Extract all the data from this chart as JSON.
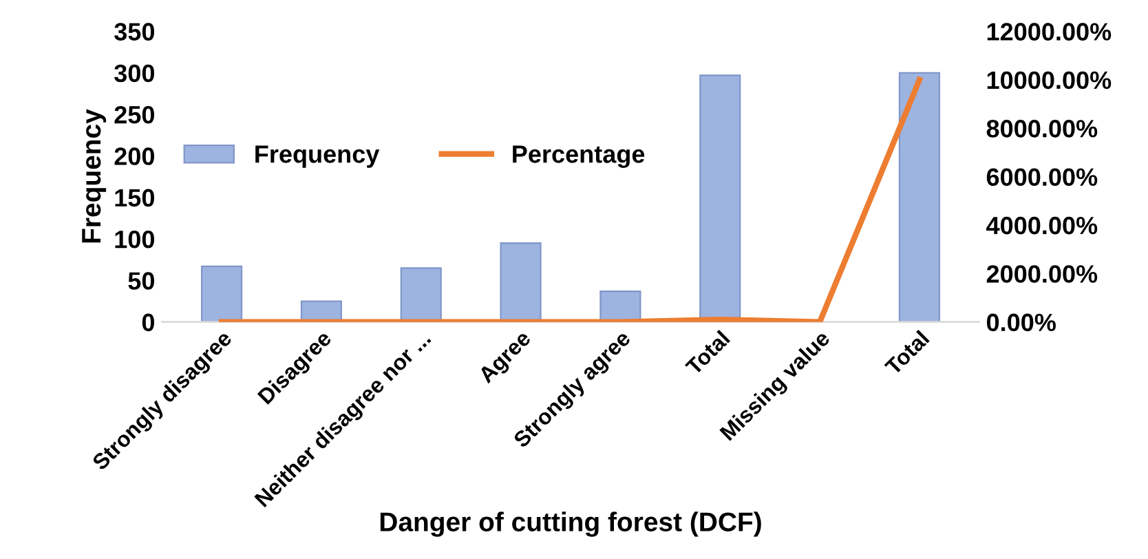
{
  "chart_data": {
    "type": "bar",
    "xlabel": "Danger of cutting forest (DCF)",
    "ylabel": "Frequency",
    "categories": [
      "Strongly disagree",
      "Disagree",
      "Neither disagree nor ...",
      "Agree",
      "Strongly agree",
      "Total",
      "Missing value",
      "Total"
    ],
    "series": [
      {
        "name": "Frequency",
        "color": "#9db3e0",
        "values": [
          67,
          25,
          65,
          95,
          37,
          297,
          null,
          300
        ]
      },
      {
        "name": "Percentage",
        "type": "line",
        "axis": "y2",
        "color": "#ed7d31",
        "values": [
          0,
          0,
          0,
          0,
          0,
          100,
          0,
          10000
        ]
      }
    ],
    "ylim": [
      0,
      350
    ],
    "yticks": [
      0,
      50,
      100,
      150,
      200,
      250,
      300,
      350
    ],
    "y2lim": [
      0,
      12000
    ],
    "y2ticks": [
      {
        "value": 0,
        "label": "0.00%"
      },
      {
        "value": 2000,
        "label": "2000.00%"
      },
      {
        "value": 4000,
        "label": "4000.00%"
      },
      {
        "value": 6000,
        "label": "6000.00%"
      },
      {
        "value": 8000,
        "label": "8000.00%"
      },
      {
        "value": 10000,
        "label": "10000.00%"
      },
      {
        "value": 12000,
        "label": "12000.00%"
      }
    ],
    "legend": "left",
    "grid": false,
    "marker": "none"
  }
}
